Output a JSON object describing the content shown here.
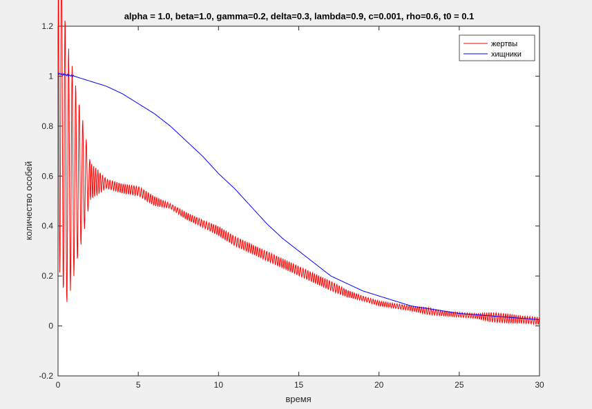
{
  "chart_data": {
    "type": "line",
    "title": "alpha = 1.0, beta=1.0, gamma=0.2, delta=0.3, lambda=0.9, c=0.001, rho=0.6, t0 = 0.1",
    "xlabel": "время",
    "ylabel": "количество особей",
    "xlim": [
      0,
      30
    ],
    "ylim": [
      -0.2,
      1.2
    ],
    "xticks": [
      "0",
      "5",
      "10",
      "15",
      "20",
      "25",
      "30"
    ],
    "yticks": [
      "-0.2",
      "0",
      "0.2",
      "0.4",
      "0.6",
      "0.8",
      "1",
      "1.2"
    ],
    "grid": false,
    "legend_position": "top-right",
    "series": [
      {
        "name": "жертвы",
        "color": "#ff0000",
        "x": [
          0,
          0.5,
          1,
          1.5,
          2,
          3,
          4,
          5,
          6,
          7,
          8,
          9,
          10,
          11,
          12,
          13,
          14,
          15,
          16,
          17,
          18,
          19,
          20,
          21,
          22,
          23,
          24,
          25,
          26,
          27,
          28,
          29,
          30
        ],
        "y": [
          1.0,
          0.62,
          0.6,
          0.59,
          0.58,
          0.57,
          0.55,
          0.54,
          0.5,
          0.48,
          0.44,
          0.41,
          0.38,
          0.34,
          0.31,
          0.28,
          0.25,
          0.22,
          0.19,
          0.16,
          0.13,
          0.11,
          0.09,
          0.08,
          0.07,
          0.06,
          0.05,
          0.045,
          0.04,
          0.035,
          0.03,
          0.025,
          0.02
        ],
        "oscillation_amplitude": [
          0.75,
          0.55,
          0.4,
          0.25,
          0.08,
          0.02,
          0.02,
          0.02,
          0.02,
          0.01,
          0.015,
          0.015,
          0.02,
          0.02,
          0.02,
          0.02,
          0.02,
          0.02,
          0.02,
          0.02,
          0.015,
          0.01,
          0.01,
          0.01,
          0.01,
          0.015,
          0.01,
          0.01,
          0.01,
          0.02,
          0.02,
          0.015,
          0.015
        ]
      },
      {
        "name": "хищники",
        "color": "#0000ff",
        "x": [
          0,
          1,
          2,
          3,
          4,
          5,
          6,
          7,
          8,
          9,
          10,
          11,
          12,
          13,
          14,
          15,
          16,
          17,
          18,
          19,
          20,
          21,
          22,
          23,
          24,
          25,
          26,
          27,
          28,
          29,
          30
        ],
        "y": [
          1.01,
          1.0,
          0.98,
          0.96,
          0.93,
          0.89,
          0.85,
          0.8,
          0.74,
          0.68,
          0.61,
          0.55,
          0.48,
          0.41,
          0.35,
          0.3,
          0.25,
          0.2,
          0.17,
          0.14,
          0.12,
          0.1,
          0.08,
          0.07,
          0.06,
          0.05,
          0.045,
          0.04,
          0.035,
          0.03,
          0.025
        ]
      }
    ]
  }
}
